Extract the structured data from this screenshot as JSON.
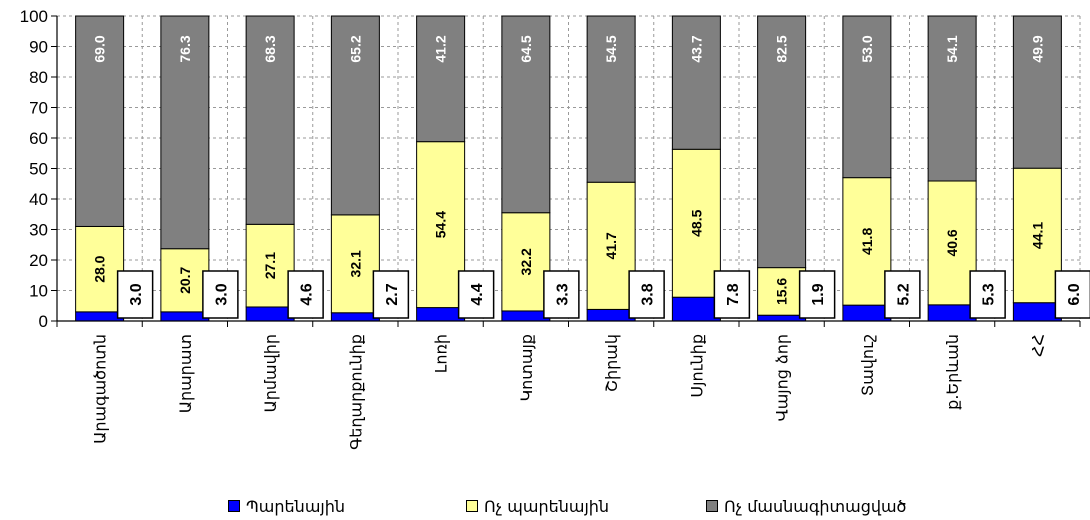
{
  "chart_data": {
    "type": "bar",
    "stacked": true,
    "categories": [
      "Արագածոտն",
      "Արարատ",
      "Արմավիր",
      "Գեղարքունիք",
      "Լոռի",
      "Կոտայք",
      "Շիրակ",
      "Սյունիք",
      "Վայոց ձոր",
      "Տավուշ",
      "ք.Երևան",
      "ՀՀ"
    ],
    "series": [
      {
        "name": "Պարենային",
        "color": "#0000ff",
        "values": [
          3.0,
          3.0,
          4.6,
          2.7,
          4.4,
          3.3,
          3.8,
          7.8,
          1.9,
          5.2,
          5.3,
          6.0
        ]
      },
      {
        "name": "Ոչ պարենային",
        "color": "#ffff99",
        "values": [
          28.0,
          20.7,
          27.1,
          32.1,
          54.4,
          32.2,
          41.7,
          48.5,
          15.6,
          41.8,
          40.6,
          44.1
        ]
      },
      {
        "name": "Ոչ մասնագիտացված",
        "color": "#808080",
        "values": [
          69.0,
          76.3,
          68.3,
          65.2,
          41.2,
          64.5,
          54.5,
          43.7,
          82.5,
          53.0,
          54.1,
          49.9
        ]
      }
    ],
    "data_labels": {
      "Պարենային": [
        "3.0",
        "3.0",
        "4.6",
        "2.7",
        "4.4",
        "3.3",
        "3.8",
        "7.8",
        "1.9",
        "5.2",
        "5.3",
        "6.0"
      ],
      "Ոչ պարենային": [
        "28.0",
        "20.7",
        "27.1",
        "32.1",
        "54.4",
        "32.2",
        "41.7",
        "48.5",
        "15.6",
        "41.8",
        "40.6",
        "44.1"
      ],
      "Ոչ մասնագիտացված": [
        "69.0",
        "76.3",
        "68.3",
        "65.2",
        "41.2",
        "64.5",
        "54.5",
        "43.7",
        "82.5",
        "53.0",
        "54.1",
        "49.9"
      ]
    },
    "ylim": [
      0,
      100
    ],
    "yticks": [
      "0",
      "10",
      "20",
      "30",
      "40",
      "50",
      "60",
      "70",
      "80",
      "90",
      "100"
    ],
    "grid": true,
    "legend_position": "bottom",
    "title": "",
    "xlabel": "",
    "ylabel": ""
  }
}
